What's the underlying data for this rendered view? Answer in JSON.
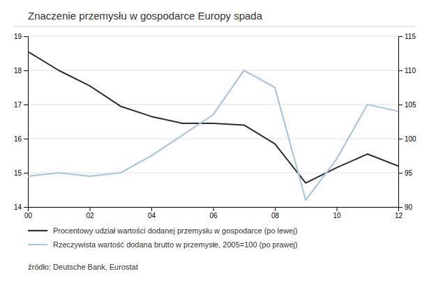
{
  "chart_data": {
    "type": "line",
    "title": "Znaczenie przemysłu w gospodarce Europy spada",
    "annotations": [
      "źródło: Deutsche Bank, Eurostat"
    ],
    "x": [
      0,
      1,
      2,
      3,
      4,
      5,
      6,
      7,
      8,
      9,
      10,
      11,
      12
    ],
    "xlim": [
      0,
      12
    ],
    "xticks": [
      {
        "value": 0,
        "label": "00"
      },
      {
        "value": 2,
        "label": "02"
      },
      {
        "value": 4,
        "label": "04"
      },
      {
        "value": 6,
        "label": "06"
      },
      {
        "value": 8,
        "label": "08"
      },
      {
        "value": 10,
        "label": "10"
      },
      {
        "value": 12,
        "label": "12"
      }
    ],
    "ylim": [
      14,
      19
    ],
    "yticks": [
      14,
      15,
      16,
      17,
      18,
      19
    ],
    "y2lim": [
      90,
      115
    ],
    "y2ticks": [
      90,
      95,
      100,
      105,
      110,
      115
    ],
    "grid": true,
    "legend": "bottom",
    "series": [
      {
        "name": "Procentowy udział wartości dodanej przemysłu w gospodarce (po lewej)",
        "color": "#2d2d2d",
        "values": [
          18.55,
          18.0,
          17.55,
          16.95,
          16.65,
          16.45,
          16.45,
          16.4,
          15.85,
          14.7,
          15.15,
          15.55,
          15.2
        ]
      },
      {
        "name": "Rzeczywista wartość dodana brutto w przemysłe, 2005=100 (po prawej)",
        "color": "#a8c8e0",
        "axis": "y2",
        "values": [
          94.5,
          95.0,
          94.5,
          95.0,
          97.5,
          100.5,
          103.5,
          110.0,
          107.5,
          91.0,
          97.0,
          105.0,
          104.0
        ]
      }
    ]
  }
}
